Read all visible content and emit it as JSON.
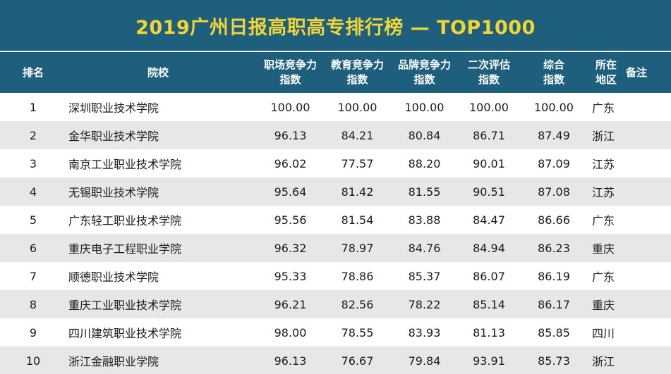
{
  "title": "2019广州日报高职高专排行榜 — TOP1000",
  "headers": {
    "rank": "排名",
    "school": "院校",
    "job_market": [
      "职场竞争力",
      "指数"
    ],
    "education": [
      "教育竞争力",
      "指数"
    ],
    "brand": [
      "品牌竞争力",
      "指数"
    ],
    "secondary": [
      "二次评估",
      "指数"
    ],
    "overall": [
      "综合",
      "指数"
    ],
    "region": [
      "所在",
      "地区"
    ],
    "note": "备注"
  },
  "rows": [
    {
      "rank": "1",
      "school": "深圳职业技术学院",
      "job_market": "100.00",
      "education": "100.00",
      "brand": "100.00",
      "secondary": "100.00",
      "overall": "100.00",
      "region": "广东",
      "note": ""
    },
    {
      "rank": "2",
      "school": "金华职业技术学院",
      "job_market": "96.13",
      "education": "84.21",
      "brand": "80.84",
      "secondary": "86.71",
      "overall": "87.49",
      "region": "浙江",
      "note": ""
    },
    {
      "rank": "3",
      "school": "南京工业职业技术学院",
      "job_market": "96.02",
      "education": "77.57",
      "brand": "88.20",
      "secondary": "90.01",
      "overall": "87.09",
      "region": "江苏",
      "note": ""
    },
    {
      "rank": "4",
      "school": "无锡职业技术学院",
      "job_market": "95.64",
      "education": "81.42",
      "brand": "81.55",
      "secondary": "90.51",
      "overall": "87.08",
      "region": "江苏",
      "note": ""
    },
    {
      "rank": "5",
      "school": "广东轻工职业技术学院",
      "job_market": "95.56",
      "education": "81.54",
      "brand": "83.88",
      "secondary": "84.47",
      "overall": "86.66",
      "region": "广东",
      "note": ""
    },
    {
      "rank": "6",
      "school": "重庆电子工程职业学院",
      "job_market": "96.32",
      "education": "78.97",
      "brand": "84.76",
      "secondary": "84.94",
      "overall": "86.23",
      "region": "重庆",
      "note": ""
    },
    {
      "rank": "7",
      "school": "顺德职业技术学院",
      "job_market": "95.33",
      "education": "78.86",
      "brand": "85.37",
      "secondary": "86.07",
      "overall": "86.19",
      "region": "广东",
      "note": ""
    },
    {
      "rank": "8",
      "school": "重庆工业职业技术学院",
      "job_market": "96.21",
      "education": "82.56",
      "brand": "78.22",
      "secondary": "85.14",
      "overall": "86.17",
      "region": "重庆",
      "note": ""
    },
    {
      "rank": "9",
      "school": "四川建筑职业技术学院",
      "job_market": "98.00",
      "education": "78.55",
      "brand": "83.93",
      "secondary": "81.13",
      "overall": "85.85",
      "region": "四川",
      "note": ""
    },
    {
      "rank": "10",
      "school": "浙江金融职业学院",
      "job_market": "96.13",
      "education": "76.67",
      "brand": "79.84",
      "secondary": "93.91",
      "overall": "85.73",
      "region": "浙江",
      "note": ""
    }
  ]
}
